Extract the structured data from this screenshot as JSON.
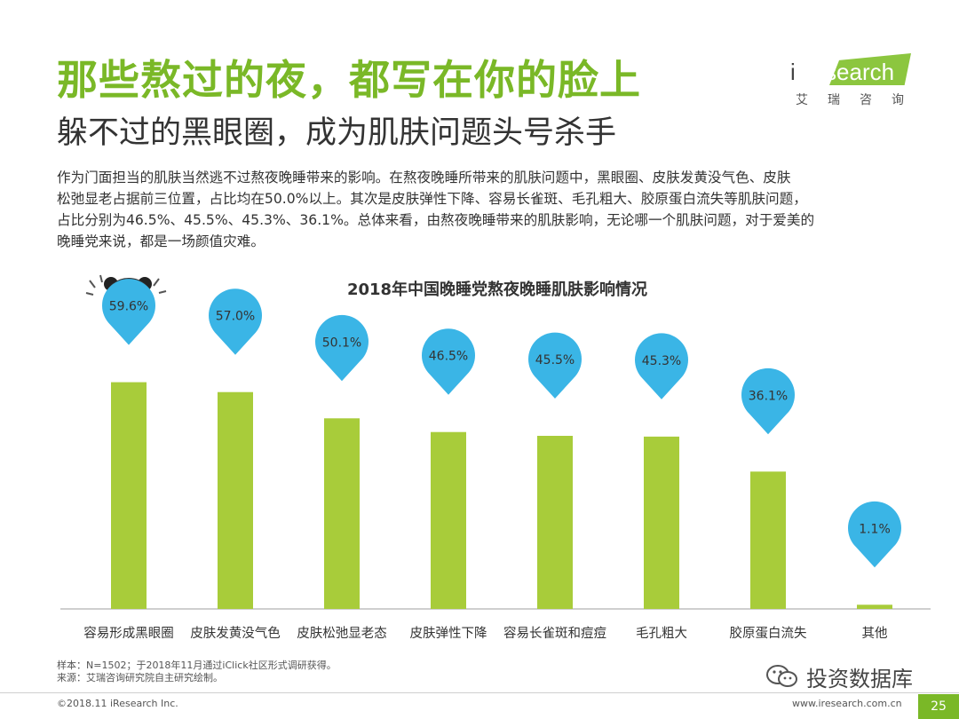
{
  "header": {
    "title": "那些熬过的夜，都写在你的脸上",
    "subtitle": "躲不过的黑眼圈，成为肌肤问题头号杀手"
  },
  "logo": {
    "word_left": "i",
    "word_right": "Research",
    "cn": "艾瑞咨询"
  },
  "description": [
    "作为门面担当的肌肤当然逃不过熬夜晚睡带来的影响。在熬夜晚睡所带来的肌肤问题中，黑眼圈、皮肤发黄没气色、皮肤",
    "松弛显老占据前三位置，占比均在50.0%以上。其次是皮肤弹性下降、容易长雀斑、毛孔粗大、胶原蛋白流失等肌肤问题，",
    "占比分别为46.5%、45.5%、45.3%、36.1%。总体来看，由熬夜晚睡带来的肌肤影响，无论哪一个肌肤问题，对于爱美的",
    "晚睡党来说，都是一场颜值灾难。"
  ],
  "chart_data": {
    "type": "bar",
    "title": "2018年中国晚睡党熬夜晚睡肌肤影响情况",
    "categories": [
      "容易形成黑眼圈",
      "皮肤发黄没气色",
      "皮肤松弛显老态",
      "皮肤弹性下降",
      "容易长雀斑和痘痘",
      "毛孔粗大",
      "胶原蛋白流失",
      "其他"
    ],
    "values": [
      59.6,
      57.0,
      50.1,
      46.5,
      45.5,
      45.3,
      36.1,
      1.1
    ],
    "data_labels": [
      "59.6%",
      "57.0%",
      "50.1%",
      "46.5%",
      "45.5%",
      "45.3%",
      "36.1%",
      "1.1%"
    ],
    "unit": "%",
    "ylim": [
      0,
      70
    ],
    "grid": false,
    "colors": {
      "bar": "#a8cc3a",
      "bubble": "#3ab5e6",
      "axis": "#bfbfbf"
    }
  },
  "footer": {
    "sample_note": "样本：N=1502；于2018年11月通过iClick社区形式调研获得。",
    "source_note": "来源：艾瑞咨询研究院自主研究绘制。",
    "copyright": "©2018.11 iResearch Inc.",
    "url": "www.iresearch.com.cn",
    "page": "25",
    "watermark": "投资数据库"
  },
  "icons": [
    "panda-mascot-icon",
    "wechat-icon"
  ]
}
